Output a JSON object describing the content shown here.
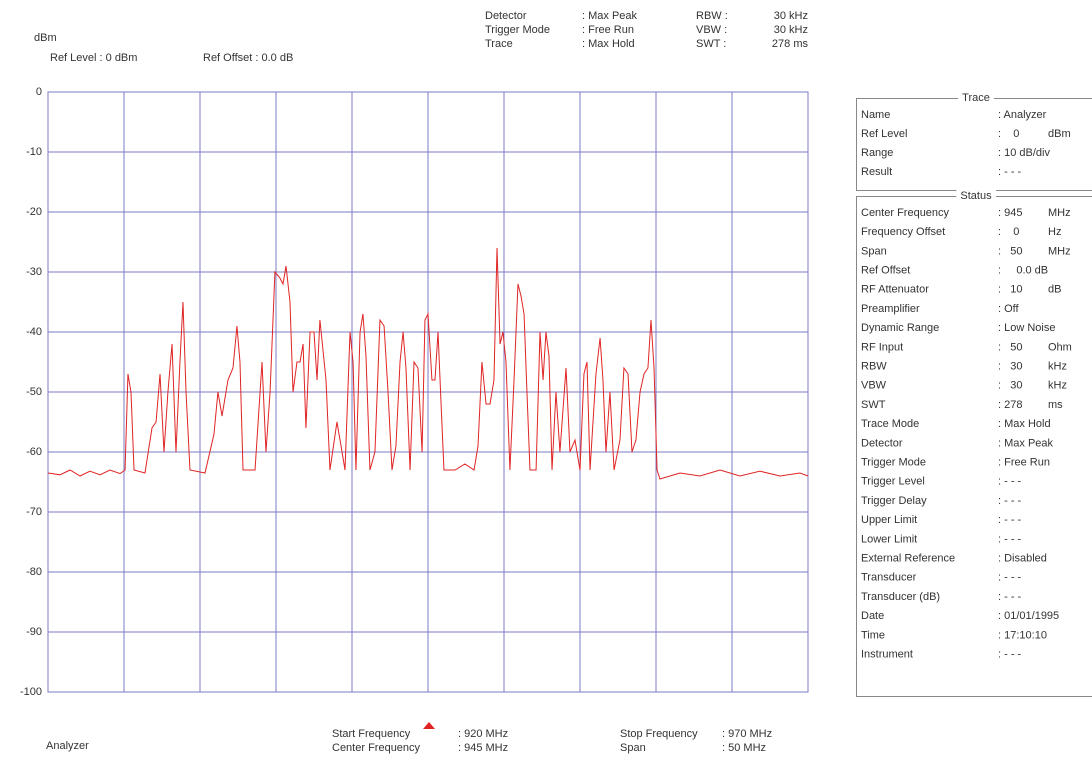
{
  "chart_data": {
    "type": "line",
    "y_unit": "dBm",
    "x": [
      920.0,
      920.79,
      921.45,
      922.11,
      922.76,
      923.42,
      924.08,
      924.74,
      925.07,
      925.26,
      925.46,
      925.66,
      926.38,
      926.84,
      927.11,
      927.37,
      927.63,
      927.89,
      928.16,
      928.42,
      928.68,
      928.88,
      929.08,
      929.34,
      930.33,
      930.92,
      931.18,
      931.45,
      931.84,
      932.17,
      932.43,
      932.63,
      932.83,
      933.62,
      934.08,
      934.34,
      934.61,
      934.93,
      935.26,
      935.46,
      935.66,
      935.92,
      936.12,
      936.38,
      936.58,
      936.78,
      936.97,
      937.24,
      937.5,
      937.7,
      937.89,
      938.09,
      938.29,
      938.55,
      939.01,
      939.28,
      939.54,
      939.87,
      940.07,
      940.26,
      940.53,
      940.72,
      940.92,
      941.18,
      941.51,
      941.84,
      942.11,
      942.37,
      942.63,
      942.89,
      943.16,
      943.36,
      943.55,
      943.82,
      944.08,
      944.34,
      944.61,
      944.8,
      945.0,
      945.26,
      945.46,
      945.66,
      945.86,
      946.05,
      946.78,
      947.43,
      948.03,
      948.29,
      948.55,
      948.82,
      949.08,
      949.34,
      949.54,
      949.74,
      949.93,
      950.13,
      950.39,
      950.66,
      950.92,
      951.12,
      951.32,
      951.51,
      951.71,
      952.11,
      952.37,
      952.57,
      952.76,
      952.96,
      953.16,
      953.42,
      953.68,
      954.08,
      954.34,
      954.67,
      955.0,
      955.26,
      955.46,
      955.66,
      956.05,
      956.32,
      956.51,
      956.71,
      956.97,
      957.24,
      957.63,
      957.89,
      958.16,
      958.42,
      958.68,
      958.95,
      959.21,
      959.47,
      959.67,
      959.87,
      960.07,
      960.26,
      961.58,
      962.89,
      964.21,
      965.53,
      966.84,
      968.16,
      969.47,
      970.0
    ],
    "values": [
      -63.5,
      -63.8,
      -63,
      -64,
      -63.2,
      -63.8,
      -63,
      -63.6,
      -63,
      -47,
      -50,
      -63,
      -63.5,
      -56,
      -55,
      -47,
      -60,
      -50,
      -42,
      -60,
      -45,
      -35,
      -50,
      -63,
      -63.5,
      -57,
      -50,
      -54,
      -48,
      -46,
      -39,
      -45,
      -63,
      -63,
      -45,
      -60,
      -50,
      -30,
      -31,
      -32,
      -29,
      -35,
      -50,
      -45,
      -45,
      -42,
      -56,
      -40,
      -40,
      -48,
      -38,
      -43,
      -48,
      -63,
      -55,
      -59,
      -63,
      -40,
      -45,
      -63,
      -40,
      -37,
      -44,
      -63,
      -60,
      -38,
      -39,
      -50,
      -63,
      -59,
      -45,
      -40,
      -46,
      -63,
      -45,
      -46,
      -60,
      -38,
      -37,
      -48,
      -48,
      -40,
      -52,
      -63,
      -63,
      -62,
      -63,
      -59,
      -45,
      -52,
      -52,
      -48,
      -26,
      -42,
      -40,
      -45,
      -63,
      -48,
      -32,
      -34,
      -37,
      -50,
      -63,
      -63,
      -40,
      -48,
      -40,
      -44,
      -63,
      -50,
      -60,
      -46,
      -60,
      -58,
      -63,
      -47,
      -45,
      -63,
      -47,
      -41,
      -48,
      -60,
      -50,
      -63,
      -58,
      -46,
      -47,
      -60,
      -58,
      -50,
      -47,
      -46,
      -38,
      -46,
      -63,
      -64.5,
      -63.5,
      -64,
      -63,
      -64,
      -63.2,
      -64,
      -63.5,
      -64
    ],
    "color": "#e02424",
    "xlim": [
      920,
      970
    ],
    "xticks": [
      920,
      925,
      930,
      935,
      940,
      945,
      950,
      955,
      960,
      965,
      970
    ],
    "ylim": [
      -100,
      0
    ],
    "yticks": [
      0,
      -10,
      -20,
      -30,
      -40,
      -50,
      -60,
      -70,
      -80,
      -90,
      -100
    ],
    "grid": true
  },
  "header": {
    "ref_level": "Ref Level : 0 dBm",
    "ref_offset": "Ref Offset : 0.0 dB",
    "left": [
      [
        "Detector",
        ": Max Peak"
      ],
      [
        "Trigger Mode",
        ": Free Run"
      ],
      [
        "Trace",
        ": Max Hold"
      ]
    ],
    "right": [
      [
        "RBW :",
        "30 kHz"
      ],
      [
        "VBW :",
        "30 kHz"
      ],
      [
        "SWT :",
        "278 ms"
      ]
    ]
  },
  "footer": {
    "name": "Analyzer",
    "left": [
      [
        "Start Frequency",
        ":  920 MHz"
      ],
      [
        "Center Frequency",
        ":  945 MHz"
      ]
    ],
    "right": [
      [
        "Stop Frequency",
        ":  970 MHz"
      ],
      [
        "Span",
        ":    50 MHz"
      ]
    ]
  },
  "trace_panel": {
    "title": "Trace",
    "rows": [
      {
        "label": "Name",
        "value": ": Analyzer"
      },
      {
        "label": "Ref Level",
        "value": ":    0",
        "unit": "dBm"
      },
      {
        "label": "Range",
        "value": ": 10 dB/div"
      },
      {
        "label": "Result",
        "value": ": - - -"
      }
    ]
  },
  "status_panel": {
    "title": "Status",
    "rows": [
      {
        "label": "Center Frequency",
        "value": ": 945",
        "unit": "MHz"
      },
      {
        "label": "Frequency Offset",
        "value": ":    0",
        "unit": "Hz"
      },
      {
        "label": "Span",
        "value": ":   50",
        "unit": "MHz"
      },
      {
        "label": "Ref Offset",
        "value": ":     0.0 dB"
      },
      {
        "label": "RF Attenuator",
        "value": ":   10",
        "unit": "dB"
      },
      {
        "label": "Preamplifier",
        "value": ": Off"
      },
      {
        "label": "Dynamic Range",
        "value": ": Low Noise"
      },
      {
        "label": "RF Input",
        "value": ":   50",
        "unit": "Ohm"
      },
      {
        "label": "RBW",
        "value": ":   30",
        "unit": "kHz"
      },
      {
        "label": "VBW",
        "value": ":   30",
        "unit": "kHz"
      },
      {
        "label": "SWT",
        "value": ": 278",
        "unit": "ms"
      },
      {
        "label": "Trace Mode",
        "value": ": Max Hold"
      },
      {
        "label": "Detector",
        "value": ": Max Peak"
      },
      {
        "label": "Trigger Mode",
        "value": ": Free Run"
      },
      {
        "label": "Trigger Level",
        "value": ": - - -"
      },
      {
        "label": "Trigger Delay",
        "value": ": - - -"
      },
      {
        "label": "Upper Limit",
        "value": ": - - -"
      },
      {
        "label": "Lower Limit",
        "value": ": - - -"
      },
      {
        "label": "External Reference",
        "value": ": Disabled"
      },
      {
        "label": "Transducer",
        "value": ": - - -"
      },
      {
        "label": "Transducer (dB)",
        "value": ": - - -"
      },
      {
        "label": "Date",
        "value": ": 01/01/1995"
      },
      {
        "label": "Time",
        "value": ": 17:10:10"
      },
      {
        "label": "Instrument",
        "value": ": - - -"
      }
    ]
  }
}
